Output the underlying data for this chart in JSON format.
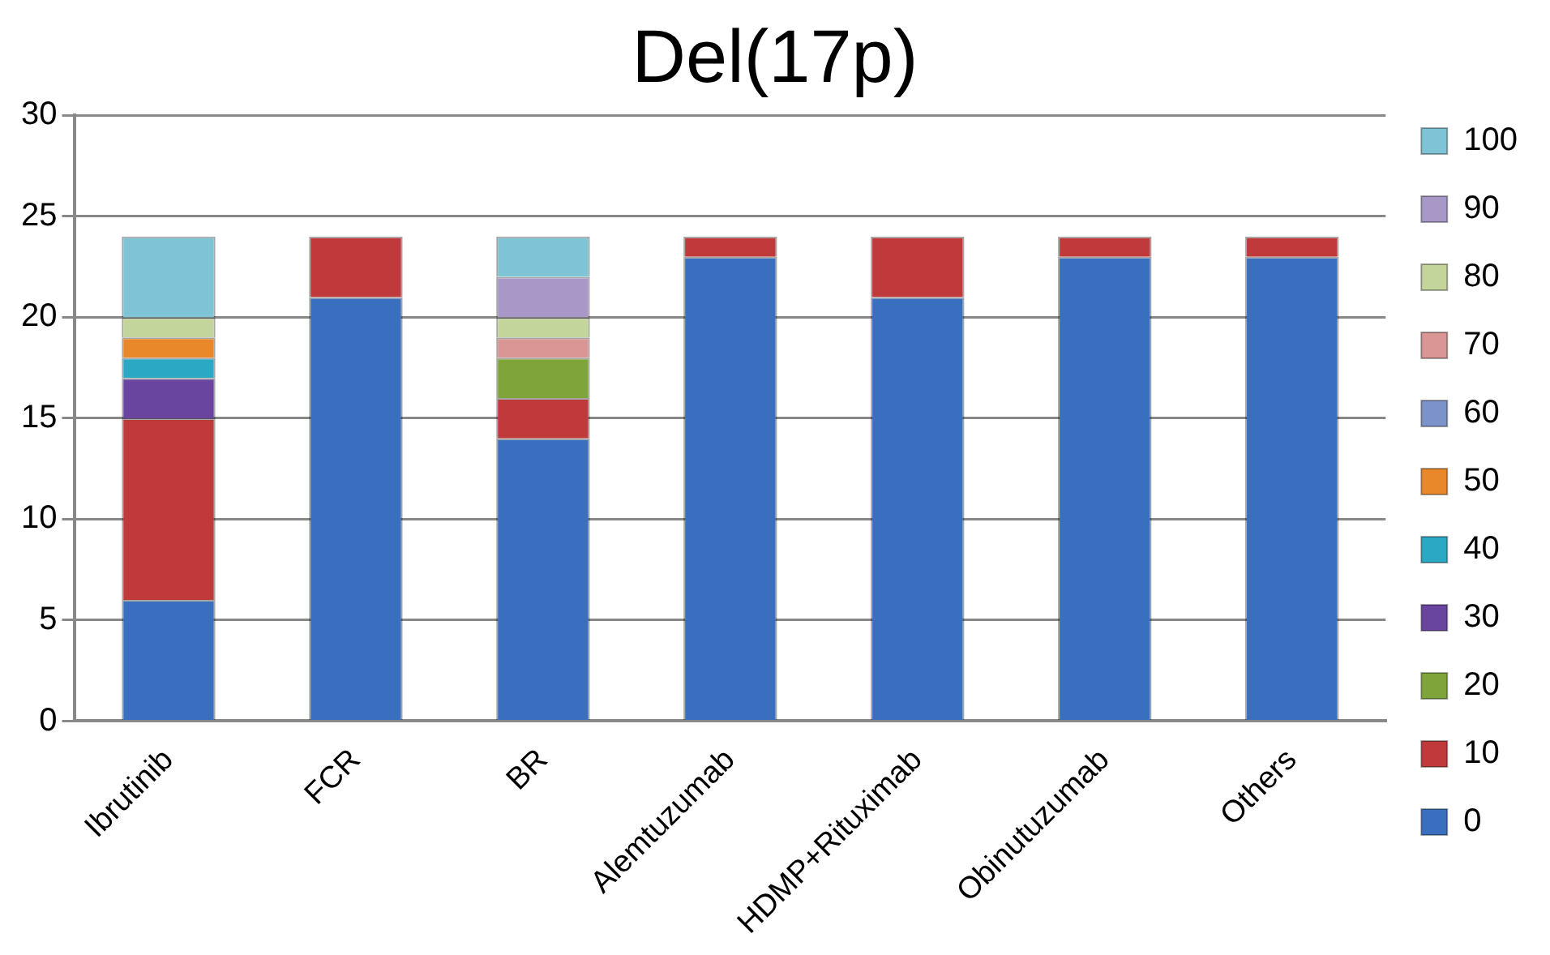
{
  "chart_data": {
    "type": "bar",
    "title": "Del(17p)",
    "stacked": true,
    "legend": "right",
    "grid": "y",
    "categories": [
      "Ibrutinib",
      "FCR",
      "BR",
      "Alemtuzumab",
      "HDMP+Rituximab",
      "Obinutuzumab",
      "Others"
    ],
    "ylim": [
      0,
      30
    ],
    "yticks": [
      0,
      5,
      10,
      15,
      20,
      25,
      30
    ],
    "series": [
      {
        "name": "0",
        "color": "#3a6fbf",
        "values": [
          6,
          21,
          14,
          23,
          21,
          23,
          23
        ]
      },
      {
        "name": "10",
        "color": "#c0393b",
        "values": [
          9,
          3,
          2,
          1,
          3,
          1,
          1
        ]
      },
      {
        "name": "20",
        "color": "#7fa53a",
        "values": [
          0,
          0,
          2,
          0,
          0,
          0,
          0
        ]
      },
      {
        "name": "30",
        "color": "#6a45a0",
        "values": [
          2,
          0,
          0,
          0,
          0,
          0,
          0
        ]
      },
      {
        "name": "40",
        "color": "#2ba8c4",
        "values": [
          1,
          0,
          0,
          0,
          0,
          0,
          0
        ]
      },
      {
        "name": "50",
        "color": "#e8882a",
        "values": [
          1,
          0,
          0,
          0,
          0,
          0,
          0
        ]
      },
      {
        "name": "60",
        "color": "#7b93c8",
        "values": [
          0,
          0,
          0,
          0,
          0,
          0,
          0
        ]
      },
      {
        "name": "70",
        "color": "#d99694",
        "values": [
          0,
          0,
          1,
          0,
          0,
          0,
          0
        ]
      },
      {
        "name": "80",
        "color": "#c3d59a",
        "values": [
          1,
          0,
          1,
          0,
          0,
          0,
          0
        ]
      },
      {
        "name": "90",
        "color": "#a898c8",
        "values": [
          0,
          0,
          2,
          0,
          0,
          0,
          0
        ]
      },
      {
        "name": "100",
        "color": "#7ec4d6",
        "values": [
          4,
          0,
          2,
          0,
          0,
          0,
          0
        ]
      }
    ]
  }
}
